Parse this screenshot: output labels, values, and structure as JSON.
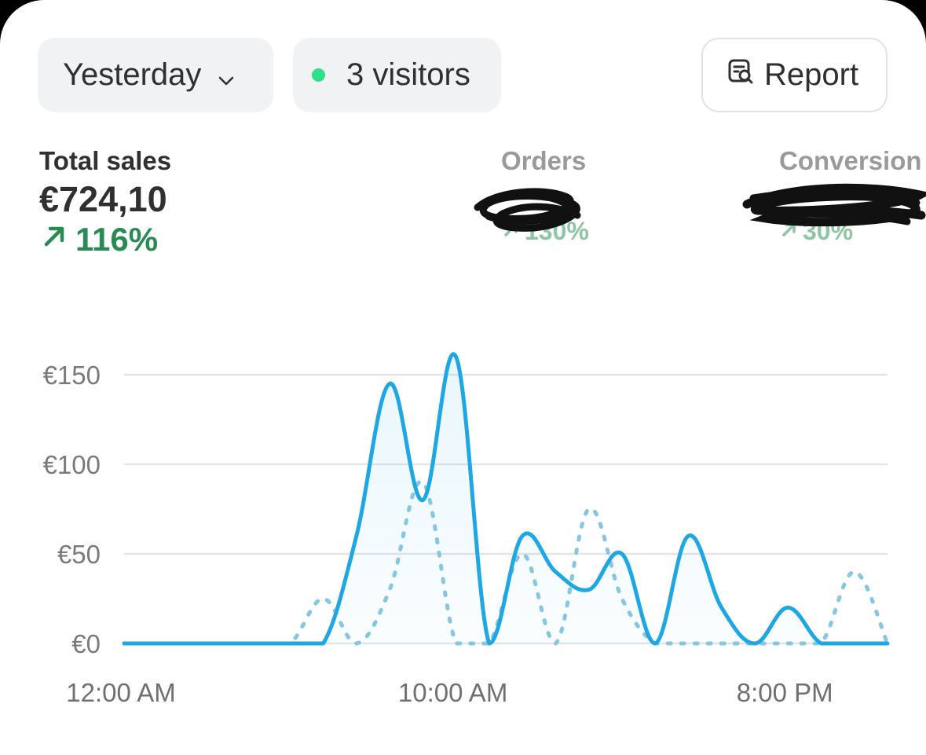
{
  "filters": {
    "date_label": "Yesterday",
    "visitors_label": "3 visitors",
    "report_label": "Report"
  },
  "metrics": [
    {
      "label": "Total sales",
      "value": "€724,10",
      "delta": "116%"
    },
    {
      "label": "Orders",
      "value": "",
      "delta": "130%"
    },
    {
      "label": "Conversion",
      "value": "",
      "delta": "30%"
    }
  ],
  "colors": {
    "series_current": "#1ea7e4",
    "series_previous": "#86c6e0",
    "delta_positive": "#2a8a55",
    "live_dot": "#2ee08a"
  },
  "chart_data": {
    "type": "line",
    "title": "",
    "xlabel": "",
    "ylabel": "",
    "ylim": [
      0,
      150
    ],
    "y_ticks": [
      "€0",
      "€50",
      "€100",
      "€150"
    ],
    "x_ticks": [
      "12:00 AM",
      "10:00 AM",
      "8:00 PM"
    ],
    "x_tick_hours": [
      0,
      10,
      20
    ],
    "x_hours": [
      0,
      1,
      2,
      3,
      4,
      5,
      6,
      7,
      8,
      9,
      10,
      11,
      12,
      13,
      14,
      15,
      16,
      17,
      18,
      19,
      20,
      21,
      22,
      23
    ],
    "series": [
      {
        "values": [
          0,
          0,
          0,
          0,
          0,
          0,
          0,
          60,
          145,
          80,
          160,
          0,
          60,
          40,
          30,
          50,
          0,
          60,
          20,
          0,
          20,
          0,
          0,
          0
        ]
      },
      {
        "values": [
          0,
          0,
          0,
          0,
          0,
          0,
          25,
          0,
          30,
          90,
          0,
          0,
          50,
          0,
          75,
          25,
          0,
          0,
          0,
          0,
          0,
          0,
          40,
          0
        ]
      }
    ]
  }
}
